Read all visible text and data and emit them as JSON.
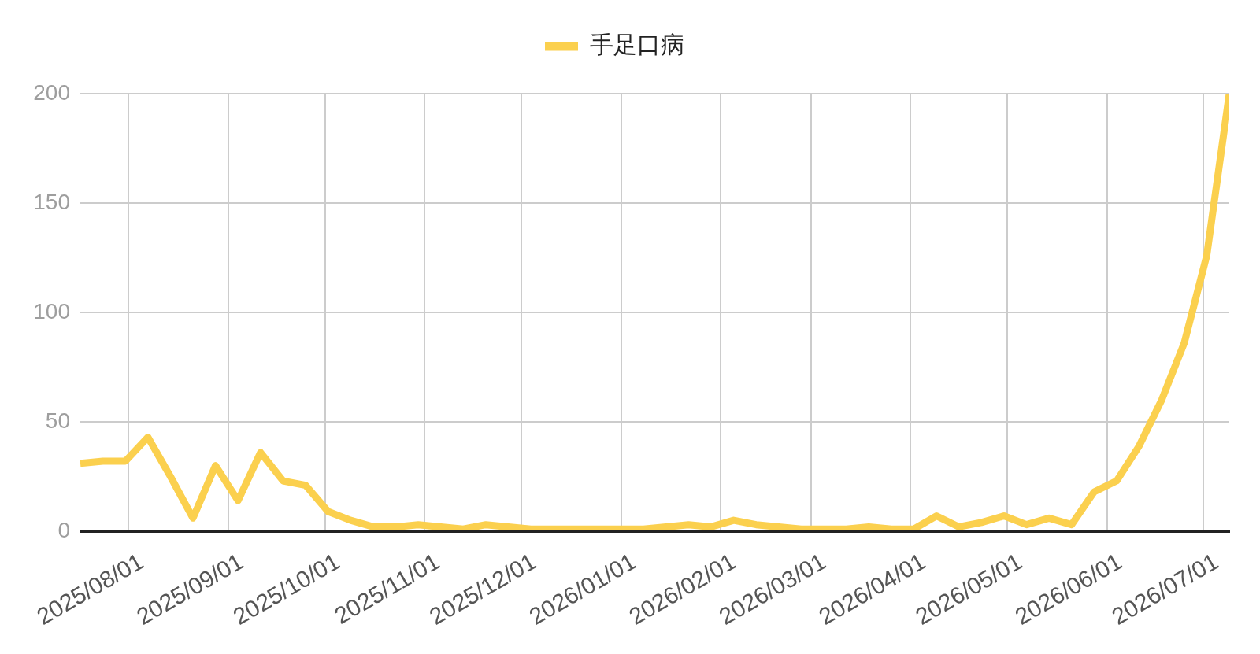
{
  "chart_data": {
    "type": "line",
    "x": [
      "2025-07-17",
      "2025-07-24",
      "2025-07-31",
      "2025-08-07",
      "2025-08-14",
      "2025-08-21",
      "2025-08-28",
      "2025-09-04",
      "2025-09-11",
      "2025-09-18",
      "2025-09-25",
      "2025-10-02",
      "2025-10-09",
      "2025-10-16",
      "2025-10-23",
      "2025-10-30",
      "2025-11-06",
      "2025-11-13",
      "2025-11-20",
      "2025-11-27",
      "2025-12-04",
      "2025-12-11",
      "2025-12-18",
      "2025-12-25",
      "2026-01-01",
      "2026-01-08",
      "2026-01-15",
      "2026-01-22",
      "2026-01-29",
      "2026-02-05",
      "2026-02-12",
      "2026-02-19",
      "2026-02-26",
      "2026-03-05",
      "2026-03-12",
      "2026-03-19",
      "2026-03-26",
      "2026-04-02",
      "2026-04-09",
      "2026-04-16",
      "2026-04-23",
      "2026-04-30",
      "2026-05-07",
      "2026-05-14",
      "2026-05-21",
      "2026-05-28",
      "2026-06-04",
      "2026-06-11",
      "2026-06-18",
      "2026-06-25",
      "2026-07-02",
      "2026-07-09"
    ],
    "series": [
      {
        "name": "手足口病",
        "color": "#fbd04e",
        "values": [
          31,
          32,
          32,
          43,
          25,
          6,
          30,
          14,
          36,
          23,
          21,
          9,
          5,
          2,
          2,
          3,
          2,
          1,
          3,
          2,
          1,
          1,
          1,
          1,
          1,
          1,
          2,
          3,
          2,
          5,
          3,
          2,
          1,
          1,
          1,
          2,
          1,
          1,
          7,
          2,
          4,
          7,
          3,
          6,
          3,
          18,
          23,
          39,
          60,
          86,
          126,
          200
        ]
      }
    ],
    "xlim": [
      "2025-07-17",
      "2026-07-09"
    ],
    "xticks": [
      {
        "value": "2025-08-01",
        "label": "2025/08/01"
      },
      {
        "value": "2025-09-01",
        "label": "2025/09/01"
      },
      {
        "value": "2025-10-01",
        "label": "2025/10/01"
      },
      {
        "value": "2025-11-01",
        "label": "2025/11/01"
      },
      {
        "value": "2025-12-01",
        "label": "2025/12/01"
      },
      {
        "value": "2026-01-01",
        "label": "2026/01/01"
      },
      {
        "value": "2026-02-01",
        "label": "2026/02/01"
      },
      {
        "value": "2026-03-01",
        "label": "2026/03/01"
      },
      {
        "value": "2026-04-01",
        "label": "2026/04/01"
      },
      {
        "value": "2026-05-01",
        "label": "2026/05/01"
      },
      {
        "value": "2026-06-01",
        "label": "2026/06/01"
      },
      {
        "value": "2026-07-01",
        "label": "2026/07/01"
      }
    ],
    "ylim": [
      0,
      200
    ],
    "yticks": [
      0,
      50,
      100,
      150,
      200
    ],
    "grid": true,
    "legend": "top",
    "marker": "none",
    "line_style": "solid"
  }
}
